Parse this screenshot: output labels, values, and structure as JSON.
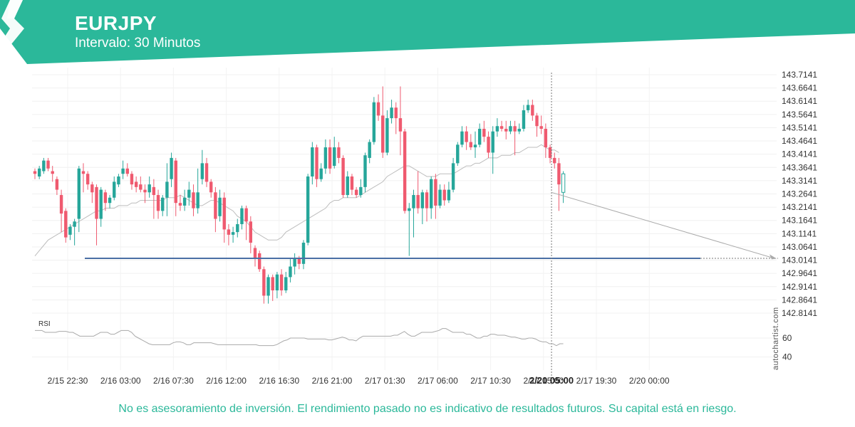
{
  "header": {
    "symbol": "EURJPY",
    "interval": "Intervalo: 30 Minutos",
    "bg_color": "#2bb89a",
    "logo_icon": "autochartist-logo-icon"
  },
  "footer": {
    "disclaimer": "No es asesoramiento de inversión. El rendimiento pasado no es indicativo de resultados futuros. Su capital está en riesgo.",
    "brand": "autochartist.com"
  },
  "colors": {
    "bull": "#26a69a",
    "bear": "#ef5a6f",
    "ma": "#bdbdbd",
    "support": "#4a6fa5",
    "accent": "#2bb89a"
  },
  "chart_data": {
    "type": "candlestick",
    "y_ticks": [
      "143.7141",
      "143.6641",
      "143.6141",
      "143.5641",
      "143.5141",
      "143.4641",
      "143.4141",
      "143.3641",
      "143.3141",
      "143.2641",
      "143.2141",
      "143.1641",
      "143.1141",
      "143.0641",
      "143.0141",
      "142.9641",
      "142.9141",
      "142.8641",
      "142.8141"
    ],
    "ylim": [
      142.79,
      143.73
    ],
    "x_ticks": [
      "2/15 22:30",
      "2/16 03:00",
      "2/16 07:30",
      "2/16 12:00",
      "2/16 16:30",
      "2/16 21:00",
      "2/17 01:30",
      "2/17 06:00",
      "2/17 10:30",
      "2/17 15:00",
      "2/17 19:30",
      "2/20 00:00"
    ],
    "current_time_label": "2/20 05:00",
    "support_level": 143.021,
    "projection": {
      "from": [
        143.27
      ],
      "to": [
        143.02
      ]
    },
    "rsi": {
      "label": "RSI",
      "ticks": [
        "60",
        "40"
      ],
      "ylim": [
        30,
        75
      ],
      "values": [
        68,
        68,
        68,
        66,
        66,
        66,
        66,
        67,
        67,
        67,
        66,
        66,
        64,
        62,
        62,
        62,
        62,
        62,
        64,
        66,
        66,
        66,
        64,
        64,
        66,
        68,
        68,
        68,
        66,
        62,
        60,
        58,
        56,
        54,
        53,
        53,
        53,
        53,
        53,
        53,
        55,
        56,
        56,
        55,
        53,
        53,
        55,
        55,
        55,
        55,
        55,
        55,
        54,
        53,
        53,
        53,
        53,
        53,
        53,
        53,
        53,
        53,
        53,
        53,
        53,
        52,
        52,
        52,
        52,
        52,
        53,
        55,
        57,
        58,
        60,
        60,
        60,
        60,
        60,
        59,
        59,
        59,
        59,
        59,
        59,
        58,
        58,
        59,
        60,
        61,
        60,
        58,
        58,
        57,
        60,
        62,
        62,
        62,
        62,
        62,
        62,
        62,
        62,
        62,
        63,
        63,
        65,
        67,
        64,
        62,
        62,
        64,
        66,
        66,
        66,
        66,
        67,
        68,
        70,
        70,
        68,
        66,
        66,
        66,
        66,
        64,
        64,
        62,
        60,
        60,
        62,
        62,
        64,
        64,
        63,
        63,
        63,
        62,
        61,
        61,
        60,
        59,
        59,
        60,
        60,
        59,
        57,
        56,
        56,
        54,
        54,
        52,
        54,
        54
      ]
    },
    "candles": [
      [
        143.35,
        143.34,
        143.36,
        143.32
      ],
      [
        143.33,
        143.36,
        143.37,
        143.32
      ],
      [
        143.35,
        143.39,
        143.4,
        143.34
      ],
      [
        143.39,
        143.36,
        143.4,
        143.35
      ],
      [
        143.35,
        143.34,
        143.37,
        143.31
      ],
      [
        143.32,
        143.28,
        143.33,
        143.26
      ],
      [
        143.26,
        143.19,
        143.28,
        143.12
      ],
      [
        143.2,
        143.1,
        143.21,
        143.08
      ],
      [
        143.11,
        143.14,
        143.15,
        143.09
      ],
      [
        143.14,
        143.16,
        143.17,
        143.07
      ],
      [
        143.17,
        143.36,
        143.37,
        143.12
      ],
      [
        143.35,
        143.34,
        143.38,
        143.27
      ],
      [
        143.34,
        143.3,
        143.35,
        143.28
      ],
      [
        143.3,
        143.27,
        143.31,
        143.23
      ],
      [
        143.29,
        143.17,
        143.3,
        143.07
      ],
      [
        143.17,
        143.28,
        143.29,
        143.14
      ],
      [
        143.27,
        143.23,
        143.28,
        143.2
      ],
      [
        143.23,
        143.25,
        143.26,
        143.21
      ],
      [
        143.25,
        143.31,
        143.33,
        143.24
      ],
      [
        143.3,
        143.33,
        143.34,
        143.29
      ],
      [
        143.34,
        143.36,
        143.39,
        143.32
      ],
      [
        143.36,
        143.34,
        143.38,
        143.33
      ],
      [
        143.34,
        143.3,
        143.35,
        143.28
      ],
      [
        143.31,
        143.29,
        143.33,
        143.27
      ],
      [
        143.3,
        143.28,
        143.33,
        143.27
      ],
      [
        143.28,
        143.27,
        143.3,
        143.23
      ],
      [
        143.27,
        143.3,
        143.33,
        143.25
      ],
      [
        143.29,
        143.26,
        143.32,
        143.17
      ],
      [
        143.26,
        143.2,
        143.28,
        143.17
      ],
      [
        143.2,
        143.25,
        143.26,
        143.18
      ],
      [
        143.25,
        143.31,
        143.38,
        143.18
      ],
      [
        143.32,
        143.4,
        143.42,
        143.29
      ],
      [
        143.39,
        143.23,
        143.4,
        143.18
      ],
      [
        143.23,
        143.22,
        143.26,
        143.2
      ],
      [
        143.22,
        143.25,
        143.28,
        143.2
      ],
      [
        143.25,
        143.28,
        143.31,
        143.22
      ],
      [
        143.27,
        143.21,
        143.3,
        143.18
      ],
      [
        143.21,
        143.27,
        143.36,
        143.19
      ],
      [
        143.32,
        143.38,
        143.43,
        143.3
      ],
      [
        143.38,
        143.31,
        143.4,
        143.29
      ],
      [
        143.31,
        143.27,
        143.32,
        143.25
      ],
      [
        143.27,
        143.17,
        143.29,
        143.12
      ],
      [
        143.18,
        143.25,
        143.28,
        143.16
      ],
      [
        143.25,
        143.13,
        143.27,
        143.08
      ],
      [
        143.13,
        143.11,
        143.15,
        143.07
      ],
      [
        143.11,
        143.12,
        143.14,
        143.08
      ],
      [
        143.12,
        143.15,
        143.17,
        143.1
      ],
      [
        143.15,
        143.21,
        143.22,
        143.13
      ],
      [
        143.21,
        143.16,
        143.22,
        143.09
      ],
      [
        143.16,
        143.08,
        143.18,
        143.04
      ],
      [
        143.06,
        143.02,
        143.07,
        142.99
      ],
      [
        143.04,
        142.98,
        143.05,
        142.97
      ],
      [
        142.98,
        142.88,
        142.99,
        142.85
      ],
      [
        142.88,
        142.95,
        142.96,
        142.85
      ],
      [
        142.95,
        142.9,
        142.96,
        142.86
      ],
      [
        142.9,
        142.96,
        142.97,
        142.87
      ],
      [
        142.96,
        142.9,
        142.98,
        142.88
      ],
      [
        142.9,
        142.95,
        142.97,
        142.89
      ],
      [
        142.95,
        142.99,
        143.02,
        142.93
      ],
      [
        142.99,
        143.02,
        143.04,
        142.96
      ],
      [
        143.02,
        143.0,
        143.03,
        142.98
      ],
      [
        143.0,
        143.08,
        143.09,
        142.98
      ],
      [
        143.08,
        143.33,
        143.34,
        143.07
      ],
      [
        143.33,
        143.44,
        143.46,
        143.3
      ],
      [
        143.44,
        143.32,
        143.45,
        143.29
      ],
      [
        143.32,
        143.36,
        143.38,
        143.31
      ],
      [
        143.36,
        143.44,
        143.47,
        143.34
      ],
      [
        143.44,
        143.36,
        143.47,
        143.34
      ],
      [
        143.37,
        143.44,
        143.48,
        143.36
      ],
      [
        143.44,
        143.4,
        143.46,
        143.38
      ],
      [
        143.4,
        143.26,
        143.41,
        143.25
      ],
      [
        143.26,
        143.33,
        143.35,
        143.25
      ],
      [
        143.33,
        143.28,
        143.34,
        143.26
      ],
      [
        143.28,
        143.26,
        143.29,
        143.25
      ],
      [
        143.26,
        143.29,
        143.32,
        143.25
      ],
      [
        143.29,
        143.41,
        143.42,
        143.27
      ],
      [
        143.4,
        143.46,
        143.47,
        143.38
      ],
      [
        143.46,
        143.61,
        143.63,
        143.45
      ],
      [
        143.61,
        143.56,
        143.64,
        143.54
      ],
      [
        143.56,
        143.42,
        143.67,
        143.4
      ],
      [
        143.42,
        143.55,
        143.58,
        143.41
      ],
      [
        143.55,
        143.59,
        143.62,
        143.53
      ],
      [
        143.59,
        143.55,
        143.61,
        143.49
      ],
      [
        143.55,
        143.5,
        143.67,
        143.41
      ],
      [
        143.5,
        143.2,
        143.51,
        143.19
      ],
      [
        143.2,
        143.21,
        143.23,
        143.03
      ],
      [
        143.21,
        143.26,
        143.28,
        143.1
      ],
      [
        143.26,
        143.21,
        143.35,
        143.19
      ],
      [
        143.21,
        143.27,
        143.28,
        143.15
      ],
      [
        143.27,
        143.21,
        143.28,
        143.16
      ],
      [
        143.21,
        143.32,
        143.33,
        143.17
      ],
      [
        143.32,
        143.22,
        143.34,
        143.17
      ],
      [
        143.22,
        143.28,
        143.3,
        143.21
      ],
      [
        143.28,
        143.24,
        143.3,
        143.22
      ],
      [
        143.24,
        143.28,
        143.31,
        143.23
      ],
      [
        143.28,
        143.38,
        143.4,
        143.27
      ],
      [
        143.38,
        143.45,
        143.46,
        143.37
      ],
      [
        143.45,
        143.5,
        143.52,
        143.44
      ],
      [
        143.5,
        143.46,
        143.52,
        143.43
      ],
      [
        143.46,
        143.44,
        143.49,
        143.43
      ],
      [
        143.44,
        143.45,
        143.5,
        143.4
      ],
      [
        143.45,
        143.51,
        143.53,
        143.44
      ],
      [
        143.51,
        143.48,
        143.54,
        143.46
      ],
      [
        143.48,
        143.42,
        143.5,
        143.4
      ],
      [
        143.42,
        143.5,
        143.52,
        143.34
      ],
      [
        143.5,
        143.52,
        143.55,
        143.48
      ],
      [
        143.52,
        143.51,
        143.54,
        143.5
      ],
      [
        143.51,
        143.5,
        143.54,
        143.47
      ],
      [
        143.5,
        143.52,
        143.54,
        143.49
      ],
      [
        143.52,
        143.5,
        143.54,
        143.41
      ],
      [
        143.5,
        143.51,
        143.53,
        143.49
      ],
      [
        143.51,
        143.58,
        143.6,
        143.5
      ],
      [
        143.58,
        143.6,
        143.62,
        143.57
      ],
      [
        143.6,
        143.56,
        143.62,
        143.54
      ],
      [
        143.56,
        143.52,
        143.57,
        143.48
      ],
      [
        143.52,
        143.51,
        143.56,
        143.49
      ],
      [
        143.51,
        143.44,
        143.53,
        143.4
      ],
      [
        143.44,
        143.4,
        143.45,
        143.38
      ],
      [
        143.4,
        143.38,
        143.42,
        143.36
      ],
      [
        143.38,
        143.3,
        143.4,
        143.2
      ],
      [
        143.27,
        143.34,
        143.35,
        143.23
      ]
    ],
    "ma_values": [
      143.03,
      143.05,
      143.07,
      143.09,
      143.1,
      143.11,
      143.12,
      143.13,
      143.14,
      143.15,
      143.16,
      143.17,
      143.18,
      143.19,
      143.2,
      143.2,
      143.21,
      143.21,
      143.21,
      143.22,
      143.22,
      143.22,
      143.23,
      143.23,
      143.24,
      143.24,
      143.24,
      143.24,
      143.24,
      143.24,
      143.25,
      143.25,
      143.25,
      143.26,
      143.25,
      143.24,
      143.23,
      143.22,
      143.22,
      143.23,
      143.24,
      143.24,
      143.23,
      143.22,
      143.21,
      143.2,
      143.18,
      143.17,
      143.16,
      143.14,
      143.12,
      143.11,
      143.1,
      143.09,
      143.09,
      143.09,
      143.1,
      143.12,
      143.13,
      143.14,
      143.15,
      143.16,
      143.17,
      143.18,
      143.19,
      143.2,
      143.21,
      143.23,
      143.24,
      143.24,
      143.25,
      143.25,
      143.25,
      143.25,
      143.26,
      143.27,
      143.28,
      143.29,
      143.3,
      143.31,
      143.33,
      143.34,
      143.35,
      143.36,
      143.37,
      143.37,
      143.36,
      143.35,
      143.34,
      143.33,
      143.33,
      143.33,
      143.34,
      143.34,
      143.34,
      143.34,
      143.35,
      143.36,
      143.37,
      143.37,
      143.38,
      143.38,
      143.39,
      143.4,
      143.4,
      143.4,
      143.41,
      143.41,
      143.41,
      143.42,
      143.42,
      143.43,
      143.44,
      143.44,
      143.44,
      143.45,
      143.44,
      143.43,
      143.43,
      143.42
    ]
  }
}
